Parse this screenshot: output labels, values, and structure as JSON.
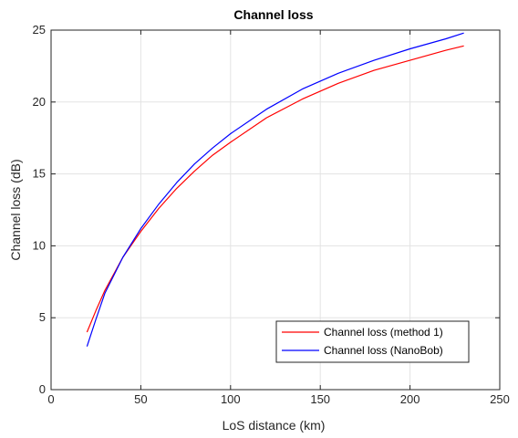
{
  "chart_data": {
    "type": "line",
    "title": "Channel loss",
    "xlabel": "LoS distance (km)",
    "ylabel": "Channel loss (dB)",
    "xlim": [
      0,
      250
    ],
    "ylim": [
      0,
      25
    ],
    "xticks": [
      0,
      50,
      100,
      150,
      200,
      250
    ],
    "yticks": [
      0,
      5,
      10,
      15,
      20,
      25
    ],
    "grid": true,
    "legend_position": "bottom-right",
    "series": [
      {
        "name": "Channel loss (method 1)",
        "color": "#ff0000",
        "x": [
          20,
          25,
          30,
          40,
          50,
          60,
          70,
          80,
          90,
          100,
          120,
          140,
          160,
          180,
          200,
          220,
          230
        ],
        "y": [
          4.0,
          5.5,
          6.9,
          9.2,
          11.0,
          12.6,
          14.0,
          15.2,
          16.3,
          17.2,
          18.9,
          20.2,
          21.3,
          22.2,
          22.9,
          23.6,
          23.9
        ]
      },
      {
        "name": "Channel loss (NanoBob)",
        "color": "#0000ff",
        "x": [
          20,
          25,
          30,
          40,
          50,
          60,
          70,
          80,
          90,
          100,
          120,
          140,
          160,
          180,
          200,
          220,
          230
        ],
        "y": [
          3.0,
          4.9,
          6.7,
          9.2,
          11.2,
          12.9,
          14.4,
          15.7,
          16.8,
          17.8,
          19.5,
          20.9,
          22.0,
          22.9,
          23.7,
          24.4,
          24.8
        ]
      }
    ]
  }
}
